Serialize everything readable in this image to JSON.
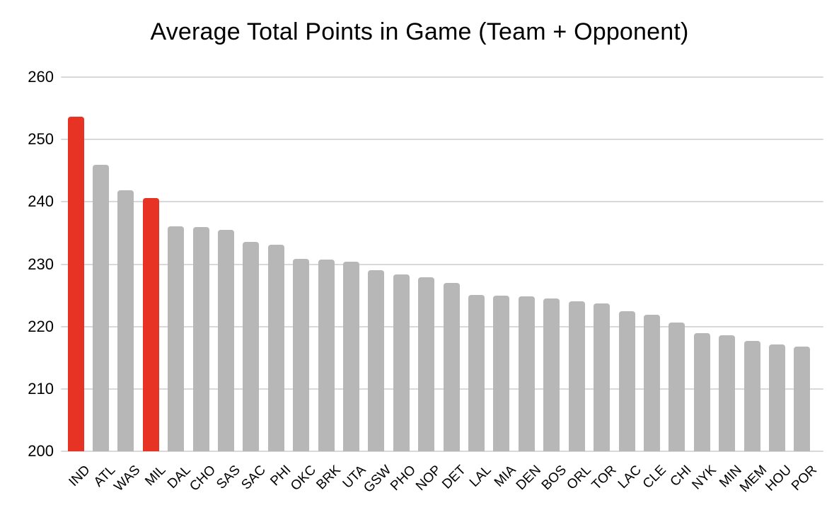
{
  "chart_data": {
    "type": "bar",
    "title": "Average Total Points in Game (Team + Opponent)",
    "categories": [
      "IND",
      "ATL",
      "WAS",
      "MIL",
      "DAL",
      "CHO",
      "SAS",
      "SAC",
      "PHI",
      "OKC",
      "BRK",
      "UTA",
      "GSW",
      "PHO",
      "NOP",
      "DET",
      "LAL",
      "MIA",
      "DEN",
      "BOS",
      "ORL",
      "TOR",
      "LAC",
      "CLE",
      "CHI",
      "NYK",
      "MIN",
      "MEM",
      "HOU",
      "POR"
    ],
    "values": [
      253.6,
      245.9,
      241.9,
      240.6,
      236.1,
      235.9,
      235.5,
      233.6,
      233.1,
      230.9,
      230.7,
      230.4,
      229.0,
      228.4,
      227.9,
      227.0,
      225.1,
      225.0,
      224.8,
      224.5,
      224.1,
      223.7,
      222.5,
      221.9,
      220.7,
      218.9,
      218.6,
      217.7,
      217.1,
      216.8
    ],
    "highlighted_categories": [
      "IND",
      "MIL"
    ],
    "highlight_indices": [
      0,
      3
    ],
    "bar_color": "#b7b7b7",
    "highlight_color": "#e63323",
    "gridline_color": "#d9d9d9",
    "text_color": "#000000",
    "background_color": "#ffffff",
    "yticks": [
      200,
      210,
      220,
      230,
      240,
      250,
      260
    ],
    "ylim": [
      200,
      260
    ],
    "xlabel": "",
    "ylabel": "",
    "legend_position": "none",
    "grid": "horizontal",
    "x_tick_rotation_deg": 45
  }
}
